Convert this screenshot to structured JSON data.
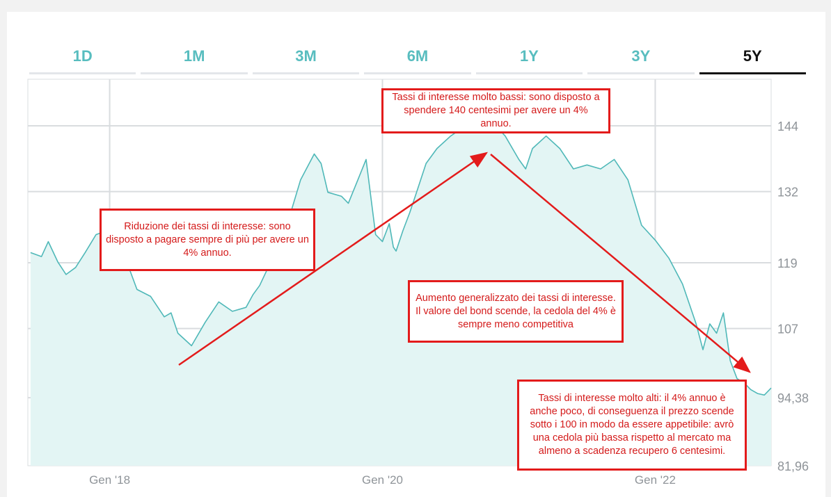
{
  "tabs": [
    {
      "label": "1D",
      "active": false
    },
    {
      "label": "1M",
      "active": false
    },
    {
      "label": "3M",
      "active": false
    },
    {
      "label": "6M",
      "active": false
    },
    {
      "label": "1Y",
      "active": false
    },
    {
      "label": "3Y",
      "active": false
    },
    {
      "label": "5Y",
      "active": true
    }
  ],
  "colors": {
    "line": "#4fb8b8",
    "area": "#e3f5f4",
    "grid": "#d9dcdf",
    "annotation": "#e31b1b",
    "tab_active": "#111111",
    "tab_inactive": "#58bdbf"
  },
  "chart_data": {
    "type": "area",
    "title": "",
    "xlabel": "",
    "ylabel": "",
    "ylim": [
      81.96,
      152.5
    ],
    "xlim": [
      2017.4,
      2022.85
    ],
    "y_ticks": [
      {
        "value": 144,
        "label": "144"
      },
      {
        "value": 132,
        "label": "132"
      },
      {
        "value": 119,
        "label": "119"
      },
      {
        "value": 107,
        "label": "107"
      },
      {
        "value": 94.38,
        "label": "94,38"
      },
      {
        "value": 81.96,
        "label": "81,96"
      }
    ],
    "x_ticks": [
      {
        "value": 2018.0,
        "label": "Gen '18"
      },
      {
        "value": 2020.0,
        "label": "Gen '20"
      },
      {
        "value": 2022.0,
        "label": "Gen '22"
      }
    ],
    "grid": true,
    "x": [
      2017.42,
      2017.5,
      2017.55,
      2017.62,
      2017.68,
      2017.75,
      2017.82,
      2017.9,
      2017.98,
      2018.05,
      2018.1,
      2018.2,
      2018.3,
      2018.4,
      2018.45,
      2018.5,
      2018.6,
      2018.7,
      2018.8,
      2018.9,
      2019.0,
      2019.05,
      2019.1,
      2019.2,
      2019.3,
      2019.4,
      2019.5,
      2019.55,
      2019.6,
      2019.7,
      2019.75,
      2019.82,
      2019.88,
      2019.95,
      2020.0,
      2020.05,
      2020.08,
      2020.1,
      2020.15,
      2020.2,
      2020.25,
      2020.32,
      2020.4,
      2020.5,
      2020.6,
      2020.7,
      2020.8,
      2020.9,
      2021.0,
      2021.05,
      2021.1,
      2021.2,
      2021.3,
      2021.4,
      2021.5,
      2021.6,
      2021.7,
      2021.8,
      2021.9,
      2022.0,
      2022.1,
      2022.2,
      2022.3,
      2022.35,
      2022.4,
      2022.45,
      2022.5,
      2022.55,
      2022.6,
      2022.65,
      2022.7,
      2022.75,
      2022.8,
      2022.85
    ],
    "values": [
      121,
      120,
      123,
      119,
      117,
      118,
      121,
      124,
      125,
      121,
      121,
      114,
      113,
      109,
      110,
      106,
      104,
      108,
      112,
      110,
      111,
      113,
      115,
      120,
      126,
      134,
      139,
      137,
      132,
      131,
      130,
      134,
      138,
      124,
      123,
      126,
      122,
      121,
      125,
      128,
      132,
      137,
      140,
      142,
      144,
      145,
      145,
      142,
      138,
      136,
      140,
      142,
      140,
      136,
      137,
      136,
      138,
      134,
      126,
      123,
      120,
      115,
      108,
      103,
      108,
      106,
      110,
      101,
      98,
      97,
      96,
      95,
      95,
      96
    ]
  },
  "annotations": [
    {
      "text": "Tassi di interesse molto bassi: sono disposto a spendere 140 centesimi per avere un 4% annuo."
    },
    {
      "text": "Riduzione dei tassi di interesse: sono disposto a pagare sempre di più per avere un 4% annuo."
    },
    {
      "text": "Aumento generalizzato dei tassi di interesse. Il valore del bond scende, la cedola del 4% è sempre meno competitiva"
    },
    {
      "text": "Tassi di interesse molto alti: il 4% annuo è anche poco, di conseguenza il prezzo scende sotto i 100 in modo da essere appetibile: avrò una cedola più bassa rispetto al mercato ma almeno a scadenza recupero 6 centesimi."
    }
  ]
}
